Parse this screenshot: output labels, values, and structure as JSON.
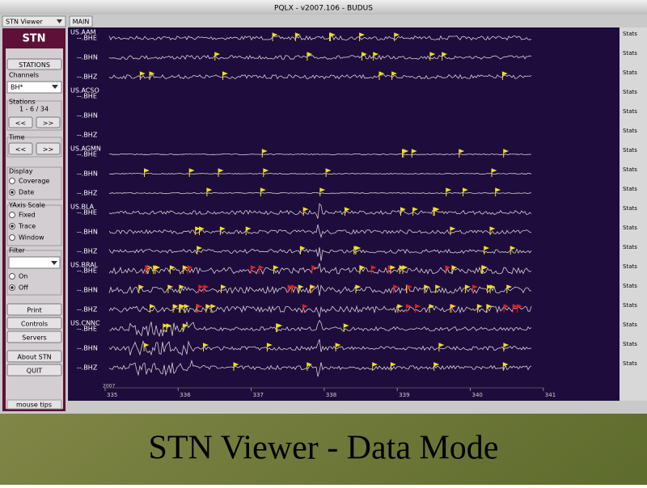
{
  "window": {
    "title": "PQLX - v2007.106 - BUDUS",
    "tabs": [
      "STN Viewer",
      "MAIN"
    ]
  },
  "panel": {
    "header": "STN",
    "stations_button": "STATIONS",
    "channels_label": "Channels",
    "channels_value": "BH*",
    "stations_label": "Stations",
    "stations_range": "1 - 6 / 34",
    "stations_prev": "<<",
    "stations_next": ">>",
    "time_label": "Time",
    "time_prev": "<<",
    "time_next": ">>",
    "display_label": "Display",
    "display_options": [
      "Coverage",
      "Date"
    ],
    "yaxis_label": "YAxis Scale",
    "yaxis_options": [
      "Fixed",
      "Trace",
      "Window"
    ],
    "filter_label": "Filter",
    "filter_options": [
      "On",
      "Off"
    ],
    "buttons": [
      "Print",
      "Controls",
      "Servers"
    ],
    "about": "About STN",
    "quit": "QUIT",
    "tips": "mouse tips"
  },
  "stations": [
    {
      "name": "US.AAM",
      "channels": [
        "--.BHE",
        "--.BHN",
        "--.BHZ"
      ]
    },
    {
      "name": "US.ACSO",
      "channels": [
        "--.BHE",
        "--.BHN",
        "--.BHZ"
      ]
    },
    {
      "name": "US.AGMN",
      "channels": [
        "--.BHE",
        "--.BHN",
        "--.BHZ"
      ]
    },
    {
      "name": "US.BLA",
      "channels": [
        "--.BHE",
        "--.BHN",
        "--.BHZ"
      ]
    },
    {
      "name": "US.BRAL",
      "channels": [
        "--.BHE",
        "--.BHN",
        "--.BHZ"
      ]
    },
    {
      "name": "US.CNNC",
      "channels": [
        "--.BHE",
        "--.BHN",
        "--.BHZ"
      ]
    }
  ],
  "stats": [
    "Stats",
    "Stats",
    "Stats",
    "Stats",
    "Stats",
    "Stats",
    "Stats",
    "Stats",
    "Stats",
    "Stats",
    "Stats",
    "Stats",
    "Stats",
    "Stats",
    "Stats",
    "Stats",
    "Stats",
    "Stats"
  ],
  "axis": {
    "year": "2007",
    "days": [
      "335",
      "336",
      "337",
      "338",
      "339",
      "340",
      "341"
    ]
  },
  "caption": "STN Viewer - Data Mode"
}
